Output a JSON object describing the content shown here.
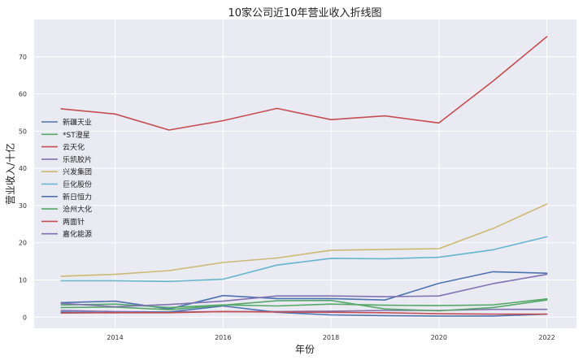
{
  "chart_data": {
    "type": "line",
    "title": "10家公司近10年营业收入折线图",
    "xlabel": "年份",
    "ylabel": "营业收入/十亿",
    "x": [
      2013,
      2014,
      2015,
      2016,
      2017,
      2018,
      2019,
      2020,
      2021,
      2022
    ],
    "xlim": [
      2012.5,
      2022.55
    ],
    "ylim": [
      -3,
      80
    ],
    "x_ticks": [
      2014,
      2016,
      2018,
      2020,
      2022
    ],
    "y_ticks": [
      0,
      10,
      20,
      30,
      40,
      50,
      60,
      70
    ],
    "grid": true,
    "legend_position": "center-left",
    "background": "#eaeaf2",
    "grid_color": "#ffffff",
    "series": [
      {
        "name": "新疆天业",
        "color": "#4c72b0",
        "values": [
          3.9,
          4.3,
          2.2,
          5.8,
          5.0,
          5.0,
          4.6,
          9.1,
          12.2,
          11.8
        ]
      },
      {
        "name": "*ST澄星",
        "color": "#55a868",
        "values": [
          3.3,
          3.5,
          2.6,
          3.3,
          3.0,
          3.5,
          3.2,
          3.1,
          3.3,
          4.9
        ]
      },
      {
        "name": "云天化",
        "color": "#c44e52",
        "values": [
          56.0,
          54.6,
          50.3,
          52.8,
          56.1,
          53.1,
          54.1,
          52.2,
          63.4,
          75.4
        ]
      },
      {
        "name": "乐凯胶片",
        "color": "#8172b2",
        "values": [
          1.8,
          1.5,
          1.4,
          1.5,
          1.5,
          1.6,
          1.8,
          1.8,
          2.1,
          2.1
        ]
      },
      {
        "name": "兴发集团",
        "color": "#ccb974",
        "values": [
          11.0,
          11.5,
          12.5,
          14.7,
          15.9,
          18.0,
          18.2,
          18.4,
          23.8,
          30.4
        ]
      },
      {
        "name": "巨化股份",
        "color": "#64b5cd",
        "values": [
          9.8,
          9.8,
          9.6,
          10.2,
          14.0,
          15.8,
          15.7,
          16.1,
          18.1,
          21.6
        ]
      },
      {
        "name": "新日恒力",
        "color": "#4c72b0",
        "values": [
          1.4,
          1.2,
          1.4,
          3.0,
          1.3,
          0.6,
          0.4,
          0.3,
          0.3,
          0.8
        ]
      },
      {
        "name": "沧州大化",
        "color": "#55a868",
        "values": [
          2.6,
          2.7,
          2.0,
          3.2,
          4.4,
          4.5,
          2.2,
          1.7,
          2.6,
          4.6
        ]
      },
      {
        "name": "两面针",
        "color": "#c44e52",
        "values": [
          1.1,
          1.2,
          1.2,
          1.5,
          1.4,
          1.3,
          1.2,
          0.9,
          0.8,
          0.8
        ]
      },
      {
        "name": "嘉化能源",
        "color": "#8172b2",
        "values": [
          3.7,
          2.8,
          3.4,
          4.3,
          5.7,
          5.7,
          5.5,
          5.7,
          9.0,
          11.5
        ]
      }
    ]
  }
}
